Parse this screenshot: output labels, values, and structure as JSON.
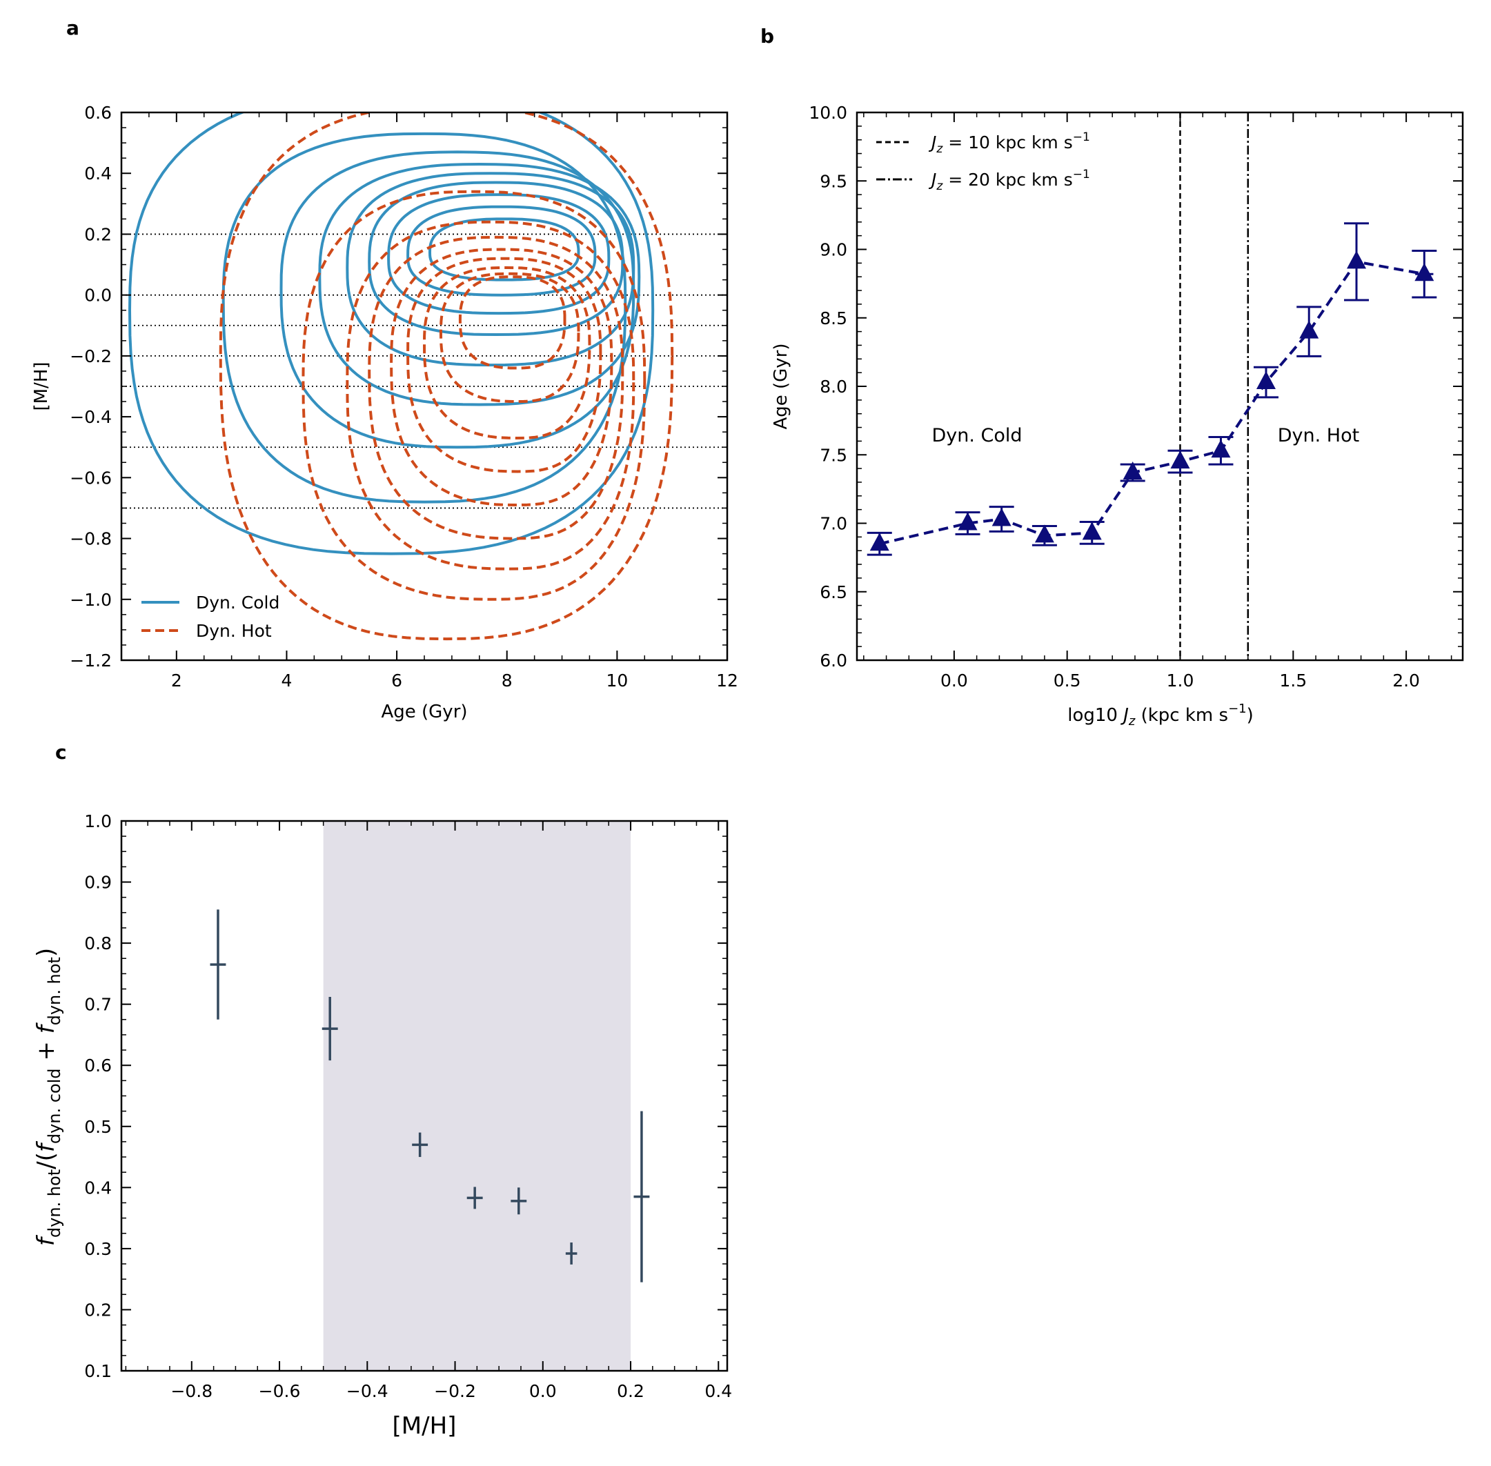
{
  "chart_data": [
    {
      "panel": "a",
      "type": "contour",
      "xlabel": "Age (Gyr)",
      "ylabel": "[M/H]",
      "xlim": [
        1,
        12
      ],
      "ylim": [
        -1.2,
        0.6
      ],
      "xticks": [
        "2",
        "4",
        "6",
        "8",
        "10",
        "12"
      ],
      "yticks": [
        "0.6",
        "0.4",
        "0.2",
        "0.0",
        "−0.2",
        "−0.4",
        "−0.6",
        "−0.8",
        "−1.0",
        "−1.2"
      ],
      "hlines": [
        0.2,
        0.0,
        -0.1,
        -0.2,
        -0.3,
        -0.5,
        -0.7
      ],
      "legend": [
        "Dyn. Cold",
        "Dyn. Hot"
      ],
      "colors": {
        "cold": "#3490bf",
        "hot": "#cf4a1a"
      },
      "series": [
        {
          "name": "Dyn. Cold",
          "contours": [
            {
              "cx": 5.9,
              "cy": -0.05,
              "rx": 4.75,
              "ryt": 0.72,
              "ryb": 0.8,
              "pinch": 0.0
            },
            {
              "cx": 6.5,
              "cy": -0.02,
              "rx": 3.65,
              "ryt": 0.55,
              "ryb": 0.66,
              "pinch": 0.0
            },
            {
              "cx": 7.1,
              "cy": 0.02,
              "rx": 3.2,
              "ryt": 0.45,
              "ryb": 0.52,
              "pinch": 0.0
            },
            {
              "cx": 7.5,
              "cy": 0.06,
              "rx": 2.9,
              "ryt": 0.37,
              "ryb": 0.42,
              "pinch": 0.0
            },
            {
              "cx": 7.7,
              "cy": 0.09,
              "rx": 2.6,
              "ryt": 0.31,
              "ryb": 0.32,
              "pinch": 0.0
            },
            {
              "cx": 7.8,
              "cy": 0.11,
              "rx": 2.3,
              "ryt": 0.26,
              "ryb": 0.24,
              "pinch": 0.0
            },
            {
              "cx": 7.85,
              "cy": 0.12,
              "rx": 2.0,
              "ryt": 0.21,
              "ryb": 0.18,
              "pinch": 0.0
            },
            {
              "cx": 7.9,
              "cy": 0.13,
              "rx": 1.7,
              "ryt": 0.16,
              "ryb": 0.13,
              "pinch": 0.0
            },
            {
              "cx": 7.95,
              "cy": 0.14,
              "rx": 1.35,
              "ryt": 0.11,
              "ryb": 0.09,
              "pinch": 0.0
            }
          ]
        },
        {
          "name": "Dyn. Hot",
          "contours": [
            {
              "cx": 6.9,
              "cy": -0.2,
              "rx": 4.1,
              "ryt": 0.82,
              "ryb": 0.93,
              "pinch": 0.0
            },
            {
              "cx": 7.4,
              "cy": -0.28,
              "rx": 3.1,
              "ryt": 0.62,
              "ryb": 0.72,
              "pinch": 0.3
            },
            {
              "cx": 7.7,
              "cy": -0.28,
              "rx": 2.6,
              "ryt": 0.52,
              "ryb": 0.62,
              "pinch": 0.35
            },
            {
              "cx": 7.8,
              "cy": -0.25,
              "rx": 2.3,
              "ryt": 0.44,
              "ryb": 0.55,
              "pinch": 0.4
            },
            {
              "cx": 7.9,
              "cy": -0.22,
              "rx": 2.0,
              "ryt": 0.37,
              "ryb": 0.47,
              "pinch": 0.4
            },
            {
              "cx": 7.95,
              "cy": -0.19,
              "rx": 1.75,
              "ryt": 0.31,
              "ryb": 0.39,
              "pinch": 0.4
            },
            {
              "cx": 8.0,
              "cy": -0.16,
              "rx": 1.5,
              "ryt": 0.25,
              "ryb": 0.31,
              "pinch": 0.35
            },
            {
              "cx": 8.05,
              "cy": -0.12,
              "rx": 1.25,
              "ryt": 0.19,
              "ryb": 0.23,
              "pinch": 0.3
            },
            {
              "cx": 8.1,
              "cy": -0.08,
              "rx": 0.95,
              "ryt": 0.14,
              "ryb": 0.16,
              "pinch": 0.2
            }
          ]
        }
      ]
    },
    {
      "panel": "b",
      "type": "line",
      "xlabel": "log10 J_z (kpc km s⁻¹)",
      "ylabel": "Age (Gyr)",
      "xlim": [
        -0.43,
        2.25
      ],
      "ylim": [
        6.0,
        10.0
      ],
      "xticks": [
        "0.0",
        "0.5",
        "1.0",
        "1.5",
        "2.0"
      ],
      "yticks": [
        "10.0",
        "9.5",
        "9.0",
        "8.5",
        "8.0",
        "7.5",
        "7.0",
        "6.5",
        "6.0"
      ],
      "vlines": [
        {
          "x": 1.0,
          "style": "dashed",
          "label": "J_z = 10 kpc km s⁻¹"
        },
        {
          "x": 1.3,
          "style": "dashdot",
          "label": "J_z = 20 kpc km s⁻¹"
        }
      ],
      "annotations": [
        {
          "text": "Dyn. Cold",
          "x": 0.1,
          "y": 7.62
        },
        {
          "text": "Dyn. Hot",
          "x": 1.6,
          "y": 7.62
        }
      ],
      "color": "#0c0c7a",
      "x": [
        -0.33,
        0.06,
        0.21,
        0.4,
        0.61,
        0.79,
        1.0,
        1.18,
        1.38,
        1.57,
        1.78,
        2.08
      ],
      "y": [
        6.85,
        7.0,
        7.03,
        6.91,
        6.93,
        7.37,
        7.45,
        7.53,
        8.03,
        8.4,
        8.91,
        8.82
      ],
      "yerr": [
        0.08,
        0.08,
        0.09,
        0.07,
        0.08,
        0.06,
        0.08,
        0.1,
        0.11,
        0.18,
        0.28,
        0.17
      ],
      "xerr": [
        0.0,
        0.0,
        0.0,
        0.0,
        0.0,
        0.0,
        0.0,
        0.0,
        0.0,
        0.0,
        0.0,
        0.04
      ]
    },
    {
      "panel": "c",
      "type": "errorbar",
      "xlabel": "[M/H]",
      "ylabel": "f_dyn.hot / (f_dyn.cold + f_dyn.hot)",
      "xlim": [
        -0.96,
        0.42
      ],
      "ylim": [
        0.1,
        1.0
      ],
      "xticks": [
        "−0.8",
        "−0.6",
        "−0.4",
        "−0.2",
        "0.0",
        "0.2",
        "0.4"
      ],
      "yticks": [
        "1.0",
        "0.9",
        "0.8",
        "0.7",
        "0.6",
        "0.5",
        "0.4",
        "0.3",
        "0.2",
        "0.1"
      ],
      "shaded_region": [
        -0.5,
        0.2
      ],
      "color": "#34495e",
      "shade_color": "#e2e0e8",
      "x": [
        -0.74,
        -0.485,
        -0.28,
        -0.155,
        -0.055,
        0.065,
        0.225
      ],
      "y": [
        0.765,
        0.66,
        0.47,
        0.383,
        0.378,
        0.292,
        0.385
      ],
      "yerr": [
        0.09,
        0.052,
        0.02,
        0.018,
        0.022,
        0.018,
        0.14
      ],
      "xerr": [
        0.018,
        0.018,
        0.018,
        0.018,
        0.018,
        0.013,
        0.018
      ]
    }
  ],
  "labels": {
    "panel_a": "a",
    "panel_b": "b",
    "panel_c": "c",
    "legend_cold": "Dyn. Cold",
    "legend_hot": "Dyn. Hot",
    "a_xlabel": "Age (Gyr)",
    "a_ylabel": "[M/H]",
    "b_xlabel_pre": "log10 ",
    "b_xlabel_j": "J",
    "b_xlabel_sub": "z",
    "b_xlabel_post": " (kpc km s",
    "b_xlabel_sup": "−1",
    "b_xlabel_end": ")",
    "b_ylabel": "Age (Gyr)",
    "b_legend_1_val": " = 10 kpc km s",
    "b_legend_2_val": " = 20 kpc km s",
    "b_annot_cold": "Dyn. Cold",
    "b_annot_hot": "Dyn. Hot",
    "c_xlabel": "[M/H]",
    "c_ylabel_f": "f",
    "c_ylabel_hot": "dyn. hot",
    "c_ylabel_mid": "/(",
    "c_ylabel_cold": "dyn. cold",
    "c_ylabel_plus": " + ",
    "c_ylabel_end": ")"
  }
}
